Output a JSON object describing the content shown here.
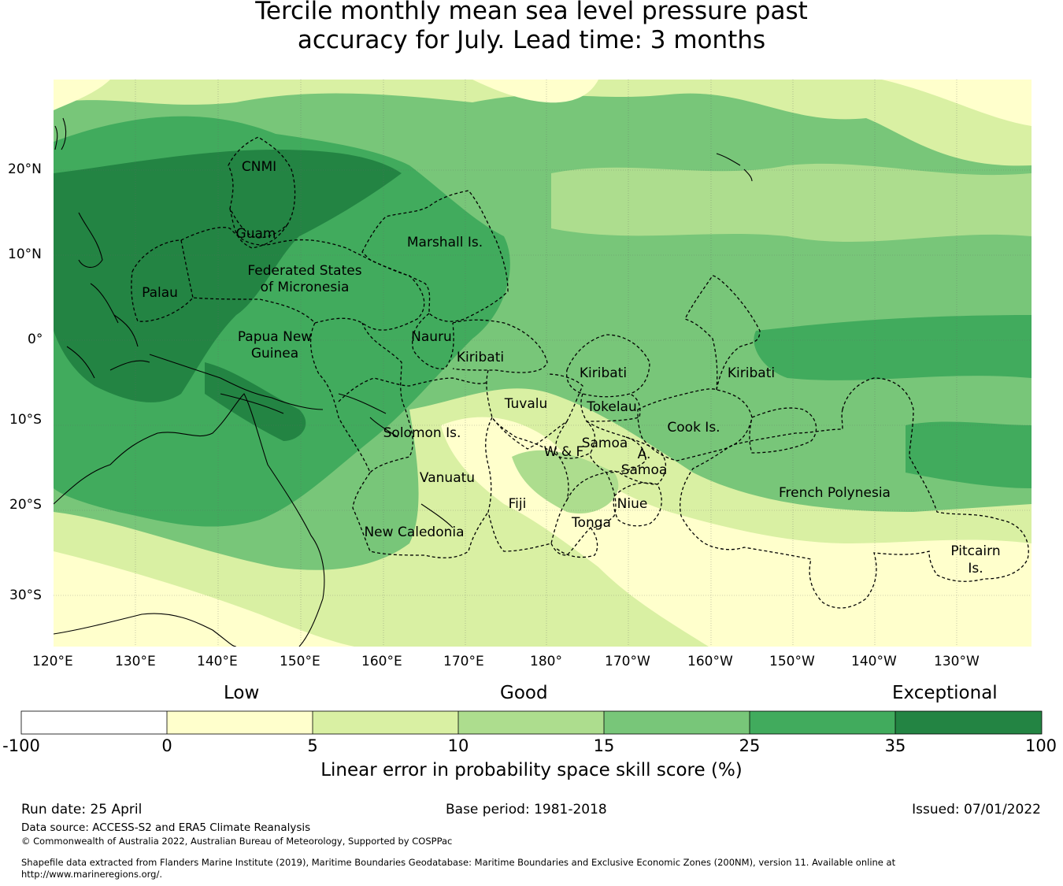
{
  "title": {
    "line1": "Tercile monthly mean sea level pressure past",
    "line2": "accuracy for July. Lead time: 3 months"
  },
  "map": {
    "lat_labels": [
      "20°N",
      "10°N",
      "0°",
      "10°S",
      "20°S",
      "30°S"
    ],
    "lon_labels": [
      "120°E",
      "130°E",
      "140°E",
      "150°E",
      "160°E",
      "170°E",
      "180°",
      "170°W",
      "160°W",
      "150°W",
      "140°W",
      "130°W"
    ],
    "region_labels": [
      "CNMI",
      "Guam",
      "Marshall Is.",
      "Federated States",
      "of Micronesia",
      "Palau",
      "Papua New",
      "Guinea",
      "Nauru",
      "Kiribati",
      "Kiribati",
      "Kiribati",
      "Tuvalu",
      "Tokelau",
      "Solomon Is.",
      "Samoa",
      "W & F",
      "A.",
      "Samoa",
      "Cook Is.",
      "Vanuatu",
      "Fiji",
      "Niue",
      "Tonga",
      "French Polynesia",
      "New Caledonia",
      "Pitcairn",
      "Is."
    ]
  },
  "colorbar": {
    "categories": [
      "Low",
      "Good",
      "Exceptional"
    ],
    "ticks": [
      "-100",
      "0",
      "5",
      "10",
      "15",
      "25",
      "35",
      "100"
    ],
    "colors": [
      "#ffffff",
      "#ffffcc",
      "#d9f0a3",
      "#addd8e",
      "#78c679",
      "#41ab5d",
      "#238443"
    ],
    "label": "Linear error in probability space skill score (%)"
  },
  "footer": {
    "run_date": "Run date: 25 April",
    "base_period": "Base period: 1981-2018",
    "issued": "Issued: 07/01/2022",
    "data_source": "Data source: ACCESS-S2 and ERA5 Climate Reanalysis",
    "copyright": "© Commonwealth of Australia 2022, Australian Bureau of Meteorology, Supported by COSPPac",
    "shapefile_line1": "Shapefile data extracted from Flanders Marine Institute (2019), Maritime Boundaries Geodatabase: Maritime Boundaries and Exclusive Economic Zones (200NM), version 11. Available online at",
    "shapefile_line2": "http://www.marineregions.org/."
  }
}
